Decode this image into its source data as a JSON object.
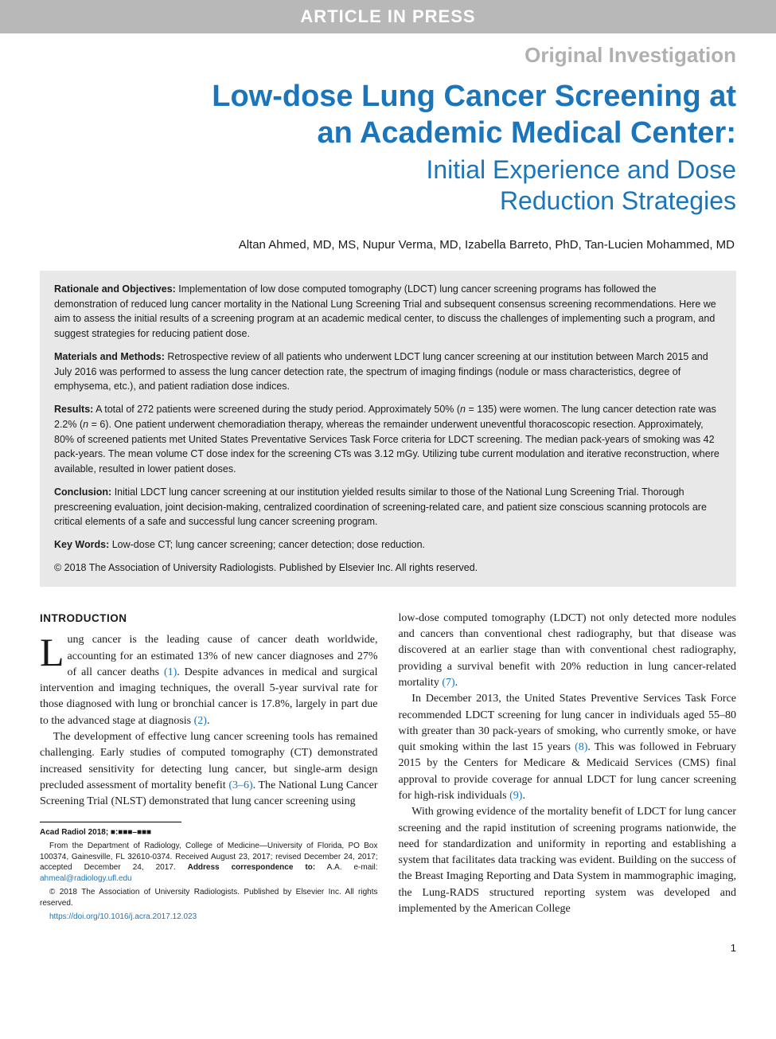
{
  "banner": "ARTICLE IN PRESS",
  "section_label": "Original Investigation",
  "title_main_line1": "Low-dose Lung Cancer Screening at",
  "title_main_line2": "an Academic Medical Center:",
  "title_sub_line1": "Initial Experience and Dose",
  "title_sub_line2": "Reduction Strategies",
  "authors": "Altan Ahmed, MD, MS, Nupur Verma, MD, Izabella Barreto, PhD, Tan-Lucien Mohammed, MD",
  "abstract": {
    "rationale_label": "Rationale and Objectives:",
    "rationale": " Implementation of low dose computed tomography (LDCT) lung cancer screening programs has followed the demonstration of reduced lung cancer mortality in the National Lung Screening Trial and subsequent consensus screening recommendations. Here we aim to assess the initial results of a screening program at an academic medical center, to discuss the challenges of implementing such a program, and suggest strategies for reducing patient dose.",
    "methods_label": "Materials and Methods:",
    "methods": " Retrospective review of all patients who underwent LDCT lung cancer screening at our institution between March 2015 and July 2016 was performed to assess the lung cancer detection rate, the spectrum of imaging findings (nodule or mass characteristics, degree of emphysema, etc.), and patient radiation dose indices.",
    "results_label": "Results:",
    "results_a": " A total of 272 patients were screened during the study period. Approximately 50% (",
    "results_n1": "n",
    "results_b": " = 135) were women. The lung cancer detection rate was 2.2% (",
    "results_n2": "n",
    "results_c": " = 6). One patient underwent chemoradiation therapy, whereas the remainder underwent uneventful thoracoscopic resection. Approximately, 80% of screened patients met United States Preventative Services Task Force criteria for LDCT screening. The median pack-years of smoking was 42 pack-years. The mean volume CT dose index for the screening CTs was 3.12 mGy. Utilizing tube current modulation and iterative reconstruction, where available, resulted in lower patient doses.",
    "conclusion_label": "Conclusion:",
    "conclusion": " Initial LDCT lung cancer screening at our institution yielded results similar to those of the National Lung Screening Trial. Thorough prescreening evaluation, joint decision-making, centralized coordination of screening-related care, and patient size conscious scanning protocols are critical elements of a safe and successful lung cancer screening program.",
    "keywords_label": "Key Words:",
    "keywords": " Low-dose CT; lung cancer screening; cancer detection; dose reduction.",
    "copyright": "© 2018 The Association of University Radiologists. Published by Elsevier Inc. All rights reserved."
  },
  "intro_heading": "INTRODUCTION",
  "col1": {
    "dropcap": "L",
    "p1a": "ung cancer is the leading cause of cancer death worldwide, accounting for an estimated 13% of new cancer diagnoses and 27% of all cancer deaths ",
    "ref1": "(1)",
    "p1b": ". Despite advances in medical and surgical intervention and imaging techniques, the overall 5-year survival rate for those diagnosed with lung or bronchial cancer is 17.8%, largely in part due to the advanced stage at diagnosis ",
    "ref2": "(2)",
    "p1c": ".",
    "p2a": "The development of effective lung cancer screening tools has remained challenging. Early studies of computed tomography (CT) demonstrated increased sensitivity for detecting lung cancer, but single-arm design precluded assessment of mortality benefit ",
    "ref3": "(3–6)",
    "p2b": ". The National Lung Cancer Screening Trial (NLST) demonstrated that lung cancer screening using"
  },
  "col2": {
    "p1a": "low-dose computed tomography (LDCT) not only detected more nodules and cancers than conventional chest radiography, but that disease was discovered at an earlier stage than with conventional chest radiography, providing a survival benefit with 20% reduction in lung cancer-related mortality ",
    "ref7": "(7)",
    "p1b": ".",
    "p2a": "In December 2013, the United States Preventive Services Task Force recommended LDCT screening for lung cancer in individuals aged 55–80 with greater than 30 pack-years of smoking, who currently smoke, or have quit smoking within the last 15 years ",
    "ref8": "(8)",
    "p2b": ". This was followed in February 2015 by the Centers for Medicare & Medicaid Services (CMS) final approval to provide coverage for annual LDCT for lung cancer screening for high-risk individuals ",
    "ref9": "(9)",
    "p2c": ".",
    "p3": "With growing evidence of the mortality benefit of LDCT for lung cancer screening and the rapid institution of screening programs nationwide, the need for standardization and uniformity in reporting and establishing a system that facilitates data tracking was evident. Building on the success of the Breast Imaging Reporting and Data System in mammographic imaging, the Lung-RADS structured reporting system was developed and implemented by the American College"
  },
  "footnote": {
    "citation": "Acad Radiol 2018; ■:■■■–■■■",
    "affil_a": "From the Department of Radiology, College of Medicine—University of Florida, PO Box 100374, Gainesville, FL 32610-0374. Received August 23, 2017; revised December 24, 2017; accepted December 24, 2017. ",
    "addr_label": "Address correspondence to:",
    "addr": " A.A. e-mail: ",
    "email": "ahmeal@radiology.ufl.edu",
    "copy": "© 2018 The Association of University Radiologists. Published by Elsevier Inc. All rights reserved.",
    "doi": "https://doi.org/10.1016/j.acra.2017.12.023"
  },
  "page_num": "1",
  "colors": {
    "accent": "#1b75bb",
    "banner_bg": "#b8b8b8",
    "label_gray": "#b0b0b0",
    "abstract_bg": "#e8e8e8"
  }
}
